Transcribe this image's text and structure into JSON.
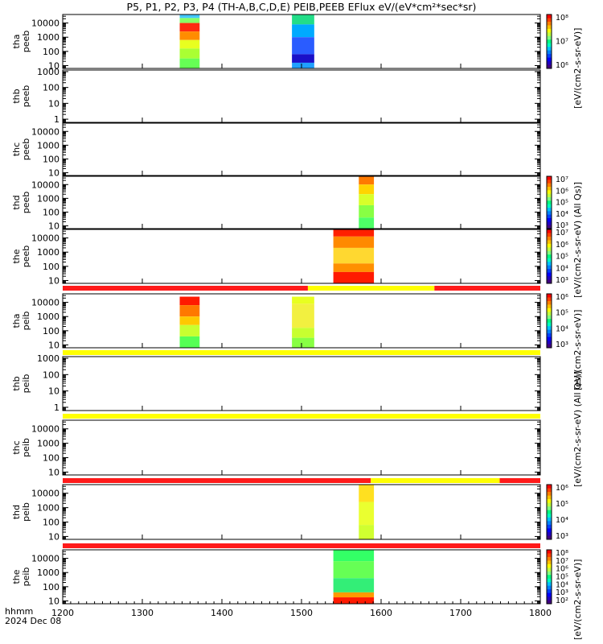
{
  "title": "P5, P1, P2, P3, P4 (TH-A,B,C,D,E) PEIB,PEEB EFlux eV/(eV*cm²*sec*sr)",
  "x_axis": {
    "corner_label": "hhmm",
    "date_label": "2024 Dec 08",
    "ticks": [
      "1200",
      "1300",
      "1400",
      "1500",
      "1600",
      "1700",
      "1800"
    ],
    "range": [
      1200,
      1800
    ]
  },
  "colorbar_labels": {
    "units_sr_ev": "[eV/(cm2-s-sr-eV)]",
    "units_all_qs": "[eV/(cm2-s-sr-eV) (All Qs)]"
  },
  "colorbar_ticks": {
    "tha_peeb": [
      "10⁸",
      "10⁷",
      "10⁶"
    ],
    "thd_peeb": [
      "10⁷",
      "10⁶",
      "10⁵",
      "10⁴",
      "10³"
    ],
    "the_peeb": [
      "10⁷",
      "10⁶",
      "10⁵",
      "10⁴",
      "10³"
    ],
    "tha_peib": [
      "10⁶",
      "10⁵",
      "10⁴",
      "10³"
    ],
    "thd_peib": [
      "10⁶",
      "10⁵",
      "10⁴",
      "10³"
    ],
    "the_peib": [
      "10⁸",
      "10⁷",
      "10⁶",
      "10⁵",
      "10⁴",
      "10³",
      "10²"
    ]
  },
  "chart_data": {
    "type": "heatmap",
    "panels": [
      {
        "label": [
          "tha",
          "peeb"
        ],
        "y_ticks": [
          "10000",
          "1000",
          "100",
          "10"
        ],
        "ylog": [
          0.8,
          4.6
        ],
        "blocks": [
          {
            "x": [
              1347,
              1372
            ],
            "layers": [
              [
                4.35,
                4.6,
                "#44c8ff"
              ],
              [
                4.0,
                4.35,
                "#88ff66"
              ],
              [
                3.4,
                4.0,
                "#ff2a10"
              ],
              [
                2.8,
                3.4,
                "#ff8c00"
              ],
              [
                2.2,
                2.8,
                "#e8ff20"
              ],
              [
                1.5,
                2.2,
                "#aaff33"
              ],
              [
                0.8,
                1.5,
                "#66ff55"
              ]
            ]
          },
          {
            "x": [
              1488,
              1516
            ],
            "layers": [
              [
                3.9,
                4.6,
                "#22dd88"
              ],
              [
                3.0,
                3.9,
                "#00aaff"
              ],
              [
                1.8,
                3.0,
                "#2a5cff"
              ],
              [
                1.2,
                1.8,
                "#1a10c8"
              ],
              [
                0.8,
                1.2,
                "#20a0ff"
              ]
            ]
          }
        ]
      },
      {
        "label": [
          "thb",
          "peeb"
        ],
        "y_ticks": [
          "1000",
          "100",
          "10",
          "1"
        ],
        "ylog": [
          -0.2,
          3.1
        ],
        "blocks": []
      },
      {
        "label": [
          "thc",
          "peeb"
        ],
        "y_ticks": [
          "10000",
          "1000",
          "100",
          "10"
        ],
        "ylog": [
          0.8,
          4.6
        ],
        "blocks": []
      },
      {
        "label": [
          "thd",
          "peeb"
        ],
        "y_ticks": [
          "10000",
          "1000",
          "100",
          "10"
        ],
        "ylog": [
          0.8,
          4.6
        ],
        "blocks": [
          {
            "x": [
              1572,
              1591
            ],
            "layers": [
              [
                4.0,
                4.6,
                "#ff7a00"
              ],
              [
                3.3,
                4.0,
                "#ffd400"
              ],
              [
                2.5,
                3.3,
                "#d8ff2a"
              ],
              [
                1.6,
                2.5,
                "#88ff44"
              ],
              [
                0.8,
                1.6,
                "#4dff66"
              ]
            ]
          }
        ]
      },
      {
        "label": [
          "the",
          "peeb"
        ],
        "y_ticks": [
          "10000",
          "1000",
          "100",
          "10"
        ],
        "ylog": [
          0.8,
          4.6
        ],
        "blocks": [
          {
            "x": [
              1540,
              1591
            ],
            "layers": [
              [
                4.1,
                4.6,
                "#ff2000"
              ],
              [
                3.3,
                4.1,
                "#ff8a00"
              ],
              [
                2.2,
                3.3,
                "#ffd830"
              ],
              [
                1.6,
                2.2,
                "#ff9000"
              ],
              [
                0.8,
                1.6,
                "#ff1a00"
              ]
            ]
          }
        ]
      },
      {
        "label": [
          "tha",
          "peib"
        ],
        "y_ticks": [
          "10000",
          "1000",
          "100",
          "10"
        ],
        "ylog": [
          0.8,
          4.6
        ],
        "blocks": [
          {
            "x": [
              1347,
              1372
            ],
            "layers": [
              [
                3.8,
                4.4,
                "#ff1a00"
              ],
              [
                3.0,
                3.8,
                "#ff7800"
              ],
              [
                2.4,
                3.0,
                "#ffc800"
              ],
              [
                1.6,
                2.4,
                "#c8ff30"
              ],
              [
                0.8,
                1.6,
                "#55ff55"
              ]
            ]
          },
          {
            "x": [
              1488,
              1516
            ],
            "layers": [
              [
                3.9,
                4.4,
                "#e8ff20"
              ],
              [
                2.2,
                3.9,
                "#f2f040"
              ],
              [
                1.5,
                2.2,
                "#c8ff30"
              ],
              [
                0.8,
                1.5,
                "#88ff44"
              ]
            ]
          }
        ]
      },
      {
        "label": [
          "thb",
          "peib"
        ],
        "y_ticks": [
          "1000",
          "100",
          "10",
          "1"
        ],
        "ylog": [
          -0.2,
          3.1
        ],
        "blocks": []
      },
      {
        "label": [
          "thc",
          "peib"
        ],
        "y_ticks": [
          "10000",
          "1000",
          "100",
          "10"
        ],
        "ylog": [
          0.8,
          4.6
        ],
        "blocks": []
      },
      {
        "label": [
          "thd",
          "peib"
        ],
        "y_ticks": [
          "10000",
          "1000",
          "100",
          "10"
        ],
        "ylog": [
          0.8,
          4.6
        ],
        "blocks": [
          {
            "x": [
              1572,
              1591
            ],
            "layers": [
              [
                3.4,
                4.6,
                "#ffe020"
              ],
              [
                1.8,
                3.4,
                "#eaff30"
              ],
              [
                0.8,
                1.8,
                "#d0ff30"
              ]
            ]
          }
        ]
      },
      {
        "label": [
          "the",
          "peib"
        ],
        "y_ticks": [
          "10000",
          "1000",
          "100",
          "10"
        ],
        "ylog": [
          0.8,
          4.6
        ],
        "blocks": [
          {
            "x": [
              1540,
              1591
            ],
            "layers": [
              [
                3.8,
                4.6,
                "#33ff66"
              ],
              [
                2.6,
                3.8,
                "#66ff55"
              ],
              [
                1.6,
                2.6,
                "#33ee77"
              ],
              [
                1.25,
                1.6,
                "#ff9a00"
              ],
              [
                0.8,
                1.25,
                "#ff1a00"
              ]
            ]
          }
        ]
      }
    ],
    "status_bars": [
      {
        "after_panel": 4,
        "segments": [
          [
            1200,
            1508,
            "#ff1a1a"
          ],
          [
            1508,
            1667,
            "#ffff00"
          ],
          [
            1667,
            1800,
            "#ff1a1a"
          ]
        ]
      },
      {
        "after_panel": 5,
        "segments": [
          [
            1200,
            1800,
            "#ffff00"
          ]
        ]
      },
      {
        "after_panel": 6,
        "segments": [
          [
            1200,
            1800,
            "#ffff00"
          ]
        ]
      },
      {
        "after_panel": 7,
        "segments": [
          [
            1200,
            1587,
            "#ff1a1a"
          ],
          [
            1587,
            1749,
            "#ffff00"
          ],
          [
            1749,
            1800,
            "#ff1a1a"
          ]
        ]
      },
      {
        "after_panel": 8,
        "segments": [
          [
            1200,
            1800,
            "#ff1a1a"
          ]
        ]
      }
    ]
  }
}
